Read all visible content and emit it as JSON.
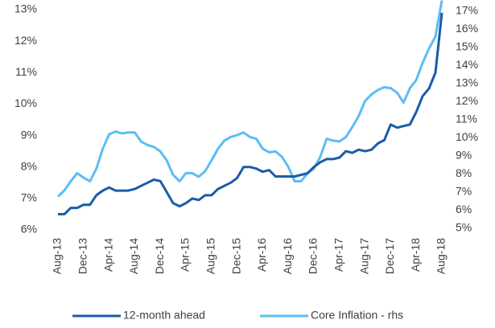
{
  "chart_data": {
    "type": "line",
    "categories": [
      "Aug-13",
      null,
      null,
      null,
      "Dec-13",
      null,
      null,
      null,
      "Apr-14",
      null,
      null,
      null,
      "Aug-14",
      null,
      null,
      null,
      "Dec-14",
      null,
      null,
      null,
      "Apr-15",
      null,
      null,
      null,
      "Aug-15",
      null,
      null,
      null,
      "Dec-15",
      null,
      null,
      null,
      "Apr-16",
      null,
      null,
      null,
      "Aug-16",
      null,
      null,
      null,
      "Dec-16",
      null,
      null,
      null,
      "Apr-17",
      null,
      null,
      null,
      "Aug-17",
      null,
      null,
      null,
      "Dec-17",
      null,
      null,
      null,
      "Apr-18",
      null,
      null,
      null,
      "Aug-18"
    ],
    "series": [
      {
        "name": "12-month ahead",
        "color": "#1a5ca8",
        "axis": "y",
        "values": [
          6.5,
          6.5,
          6.7,
          6.7,
          6.8,
          6.8,
          7.1,
          7.25,
          7.35,
          7.25,
          7.25,
          7.25,
          7.3,
          7.4,
          7.5,
          7.6,
          7.55,
          7.2,
          6.85,
          6.75,
          6.85,
          7.0,
          6.95,
          7.1,
          7.1,
          7.3,
          7.4,
          7.5,
          7.65,
          8.0,
          8.0,
          7.95,
          7.85,
          7.9,
          7.7,
          7.7,
          7.7,
          7.7,
          7.75,
          7.8,
          8.0,
          8.15,
          8.25,
          8.25,
          8.3,
          8.5,
          8.45,
          8.55,
          8.5,
          8.55,
          8.75,
          8.85,
          9.35,
          9.25,
          9.3,
          9.35,
          9.75,
          10.25,
          10.5,
          11.0,
          12.9
        ]
      },
      {
        "name": "Core Inflation - rhs",
        "color": "#5cbdf5",
        "axis": "y2",
        "values": [
          6.75,
          7.1,
          7.6,
          8.05,
          7.8,
          7.6,
          8.3,
          9.4,
          10.2,
          10.35,
          10.25,
          10.3,
          10.3,
          9.8,
          9.6,
          9.5,
          9.25,
          8.75,
          7.95,
          7.6,
          8.05,
          8.05,
          7.85,
          8.15,
          8.75,
          9.4,
          9.85,
          10.05,
          10.15,
          10.3,
          10.05,
          9.95,
          9.4,
          9.2,
          9.25,
          8.95,
          8.4,
          7.6,
          7.6,
          8.05,
          8.3,
          8.95,
          9.95,
          9.85,
          9.8,
          10.05,
          10.6,
          11.2,
          12.05,
          12.4,
          12.65,
          12.8,
          12.75,
          12.5,
          11.95,
          12.75,
          13.2,
          14.15,
          14.95,
          15.6,
          17.6
        ]
      }
    ],
    "ylim": [
      6,
      13
    ],
    "yticks": [
      {
        "value": 6,
        "label": "6%"
      },
      {
        "value": 7,
        "label": "7%"
      },
      {
        "value": 8,
        "label": "8%"
      },
      {
        "value": 9,
        "label": "9%"
      },
      {
        "value": 10,
        "label": "10%"
      },
      {
        "value": 11,
        "label": "11%"
      },
      {
        "value": 12,
        "label": "12%"
      },
      {
        "value": 13,
        "label": "13%"
      }
    ],
    "y2lim": [
      5,
      17
    ],
    "y2ticks": [
      {
        "value": 5,
        "label": "5%"
      },
      {
        "value": 6,
        "label": "6%"
      },
      {
        "value": 7,
        "label": "7%"
      },
      {
        "value": 8,
        "label": "8%"
      },
      {
        "value": 9,
        "label": "9%"
      },
      {
        "value": 10,
        "label": "10%"
      },
      {
        "value": 11,
        "label": "11%"
      },
      {
        "value": 12,
        "label": "12%"
      },
      {
        "value": 13,
        "label": "13%"
      },
      {
        "value": 14,
        "label": "14%"
      },
      {
        "value": 15,
        "label": "15%"
      },
      {
        "value": 16,
        "label": "16%"
      },
      {
        "value": 17,
        "label": "17%"
      }
    ],
    "legend": "bottom"
  }
}
